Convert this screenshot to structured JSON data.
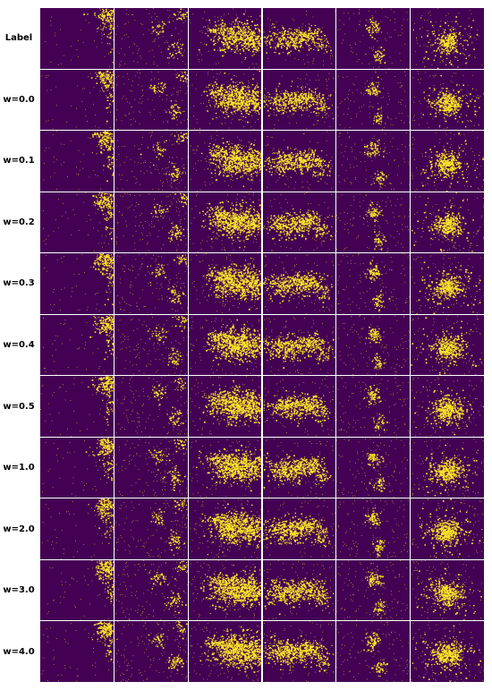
{
  "figure": {
    "row_labels": [
      "Label",
      "w=0.0",
      "w=0.1",
      "w=0.2",
      "w=0.3",
      "w=0.4",
      "w=0.5",
      "w=1.0",
      "w=2.0",
      "w=3.0",
      "w=4.0"
    ],
    "column_count": 6,
    "colors": {
      "background": "#440154",
      "foreground": "#fde725",
      "separator": "#ffffff"
    },
    "columns": [
      {
        "id": "col-1",
        "structures": "dense cluster at top-right corner, sparse scatter elsewhere"
      },
      {
        "id": "col-2",
        "structures": "sparse scatter with small clusters at upper-middle and lower-right"
      },
      {
        "id": "col-3",
        "structures": "large dense blob at center-right, spreading to right edge"
      },
      {
        "id": "col-4",
        "structures": "elongated dense region in upper-left half, thin trail to lower-right"
      },
      {
        "id": "col-5",
        "structures": "small cluster at upper-middle, trail downward, sparse scatter"
      },
      {
        "id": "col-6",
        "structures": "star-shaped dense cluster at center, radiating scatter"
      }
    ]
  }
}
